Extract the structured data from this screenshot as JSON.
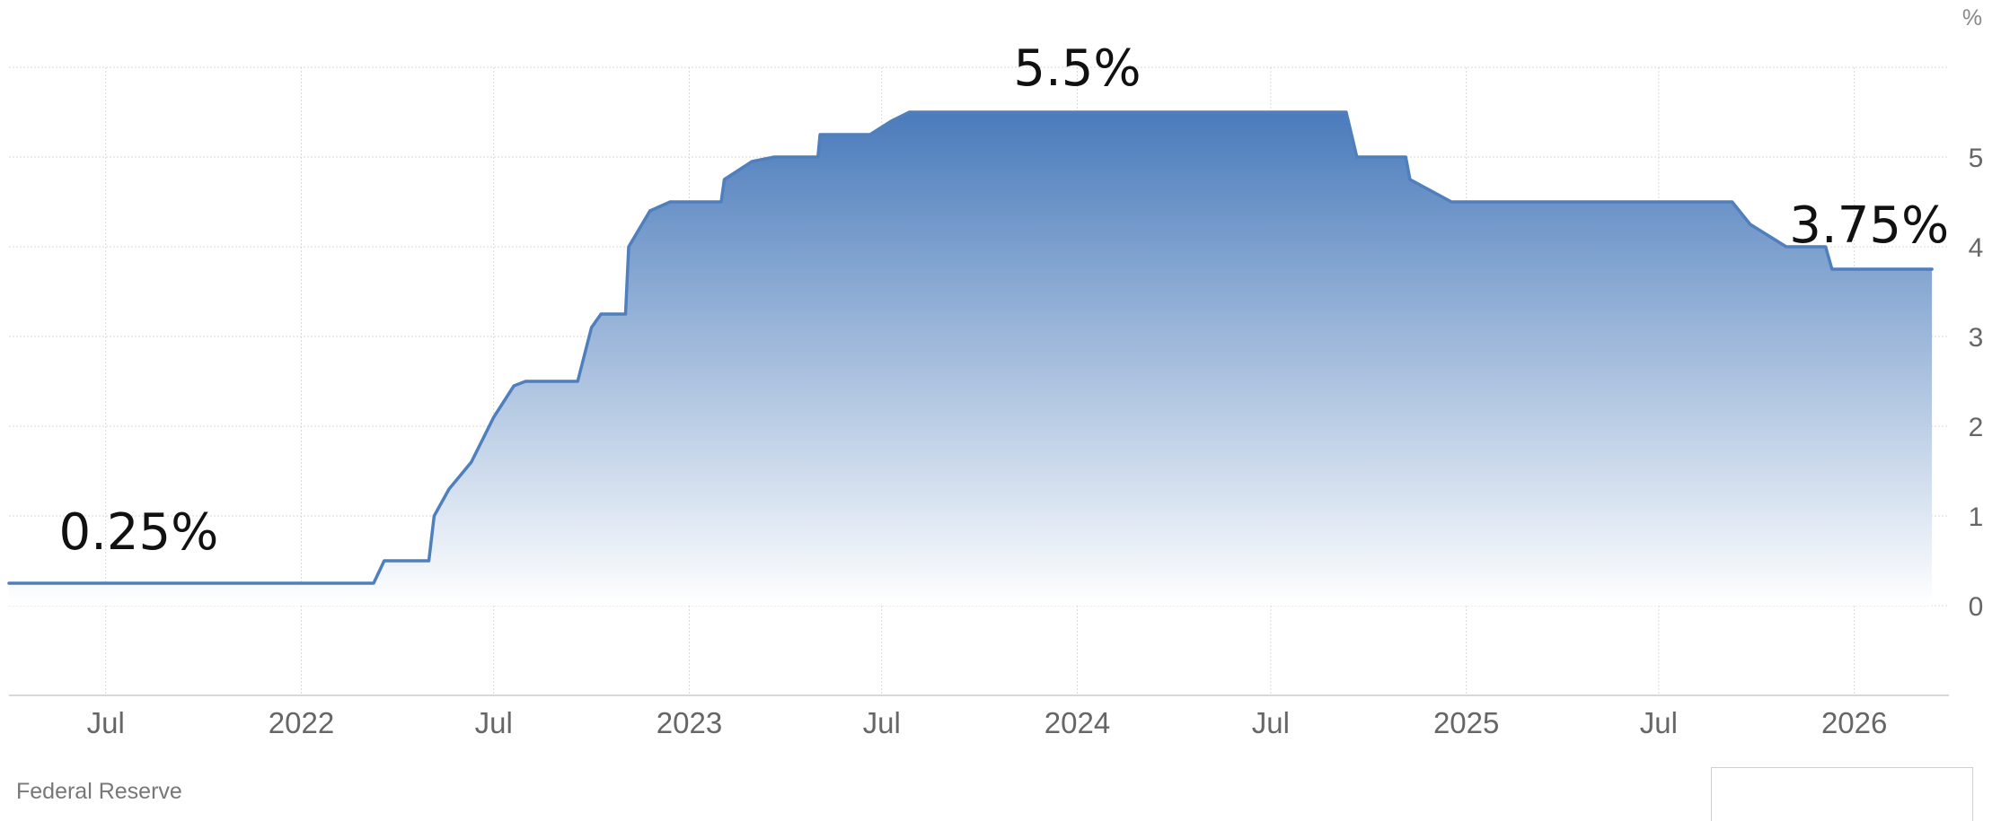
{
  "chart_data": {
    "type": "area",
    "title": "",
    "xlabel": "",
    "ylabel": "",
    "unit_label": "%",
    "source": "Federal Reserve",
    "x_tick_labels": [
      "Jul",
      "2022",
      "Jul",
      "2023",
      "Jul",
      "2024",
      "Jul",
      "2025",
      "Jul",
      "2026"
    ],
    "y_tick_labels": [
      "0",
      "1",
      "2",
      "3",
      "4",
      "5"
    ],
    "ylim": [
      -1,
      6
    ],
    "xlim": [
      "2021-04-01",
      "2026-03-31"
    ],
    "grid": true,
    "y_axis_side": "right",
    "colors": {
      "line": "#4f7fbc",
      "fill_top": "#4a7bbb",
      "fill_bottom": "#ffffff",
      "grid": "#d9d9d9"
    },
    "series": [
      {
        "points": [
          {
            "x": "2021-04-01",
            "y": 0.25
          },
          {
            "x": "2022-03-10",
            "y": 0.25
          },
          {
            "x": "2022-03-20",
            "y": 0.5
          },
          {
            "x": "2022-05-01",
            "y": 0.5
          },
          {
            "x": "2022-05-06",
            "y": 1.0
          },
          {
            "x": "2022-05-20",
            "y": 1.3
          },
          {
            "x": "2022-06-10",
            "y": 1.6
          },
          {
            "x": "2022-07-01",
            "y": 2.1
          },
          {
            "x": "2022-07-20",
            "y": 2.45
          },
          {
            "x": "2022-07-31",
            "y": 2.5
          },
          {
            "x": "2022-09-18",
            "y": 2.5
          },
          {
            "x": "2022-10-01",
            "y": 3.1
          },
          {
            "x": "2022-10-10",
            "y": 3.25
          },
          {
            "x": "2022-11-02",
            "y": 3.25
          },
          {
            "x": "2022-11-05",
            "y": 4.0
          },
          {
            "x": "2022-11-25",
            "y": 4.4
          },
          {
            "x": "2022-12-14",
            "y": 4.5
          },
          {
            "x": "2023-01-31",
            "y": 4.5
          },
          {
            "x": "2023-02-03",
            "y": 4.75
          },
          {
            "x": "2023-03-01",
            "y": 4.95
          },
          {
            "x": "2023-03-22",
            "y": 5.0
          },
          {
            "x": "2023-05-02",
            "y": 5.0
          },
          {
            "x": "2023-05-04",
            "y": 5.25
          },
          {
            "x": "2023-06-20",
            "y": 5.25
          },
          {
            "x": "2023-07-10",
            "y": 5.4
          },
          {
            "x": "2023-07-27",
            "y": 5.5
          },
          {
            "x": "2024-09-10",
            "y": 5.5
          },
          {
            "x": "2024-09-20",
            "y": 5.0
          },
          {
            "x": "2024-11-05",
            "y": 5.0
          },
          {
            "x": "2024-11-09",
            "y": 4.75
          },
          {
            "x": "2024-12-18",
            "y": 4.5
          },
          {
            "x": "2025-09-08",
            "y": 4.5
          },
          {
            "x": "2025-09-25",
            "y": 4.25
          },
          {
            "x": "2025-10-29",
            "y": 4.0
          },
          {
            "x": "2025-12-05",
            "y": 4.0
          },
          {
            "x": "2025-12-11",
            "y": 3.75
          },
          {
            "x": "2026-03-15",
            "y": 3.75
          }
        ]
      }
    ],
    "annotations": [
      {
        "text": "0.25%",
        "x": "2021-08-01",
        "y": 0.25
      },
      {
        "text": "5.5%",
        "x": "2024-01-01",
        "y": 5.5
      },
      {
        "text": "3.75%",
        "x": "2026-01-15",
        "y": 3.75
      }
    ]
  }
}
